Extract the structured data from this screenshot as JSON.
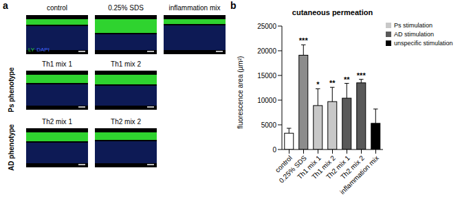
{
  "panels": {
    "a": {
      "label": "a",
      "columns": [
        "control",
        "0.25% SDS",
        "inflammation mix"
      ],
      "rows": [
        {
          "label": "Ps phenotype",
          "columns": [
            "Th1 mix 1",
            "Th1 mix 2"
          ]
        },
        {
          "label": "AD phenotype",
          "columns": [
            "Th2 mix 1",
            "Th2 mix 2"
          ]
        }
      ],
      "stains": [
        {
          "text": "LY",
          "color": "#33dd33"
        },
        {
          "text": "DAPI",
          "color": "#4466ff"
        }
      ]
    },
    "b": {
      "label": "b"
    }
  },
  "chart_data": {
    "type": "bar",
    "title": "cutaneous permeation",
    "y_label": "fluorescence area (µm²)",
    "categories": [
      "control",
      "0.25% SDS",
      "Th1 mix 1",
      "Th1 mix 2",
      "Th2 mix 1",
      "Th2 mix 2",
      "inflammation mix"
    ],
    "ylim": [
      0,
      25000
    ],
    "yticks": [
      0,
      5000,
      10000,
      15000,
      20000,
      25000
    ],
    "legend": "upper right",
    "series": [
      {
        "color": "#ffffff",
        "values": [
          3300,
          null,
          null,
          null,
          null,
          null,
          null
        ],
        "errors": [
          1000,
          null,
          null,
          null,
          null,
          null,
          null
        ],
        "significance": [
          null,
          null,
          null,
          null,
          null,
          null,
          null
        ]
      },
      {
        "color": "#8c8c8c",
        "values": [
          null,
          19100,
          null,
          null,
          null,
          null,
          null
        ],
        "errors": [
          null,
          2100,
          null,
          null,
          null,
          null,
          null
        ],
        "significance": [
          null,
          "***",
          null,
          null,
          null,
          null,
          null
        ]
      },
      {
        "name": "Ps stimulation",
        "color": "#c8c8c8",
        "values": [
          null,
          null,
          8900,
          9700,
          null,
          null,
          null
        ],
        "errors": [
          null,
          null,
          3400,
          2900,
          null,
          null,
          null
        ],
        "significance": [
          null,
          null,
          "*",
          "**",
          null,
          null,
          null
        ]
      },
      {
        "name": "AD stimulation",
        "color": "#595959",
        "values": [
          null,
          null,
          null,
          null,
          10400,
          13500,
          null
        ],
        "errors": [
          null,
          null,
          null,
          null,
          3000,
          700,
          null
        ],
        "significance": [
          null,
          null,
          null,
          null,
          "**",
          "***",
          null
        ]
      },
      {
        "name": "unspecific stimulation",
        "color": "#000000",
        "values": [
          null,
          null,
          null,
          null,
          null,
          null,
          5300
        ],
        "errors": [
          null,
          null,
          null,
          null,
          null,
          null,
          2900
        ],
        "significance": [
          null,
          null,
          null,
          null,
          null,
          null,
          null
        ]
      }
    ]
  }
}
